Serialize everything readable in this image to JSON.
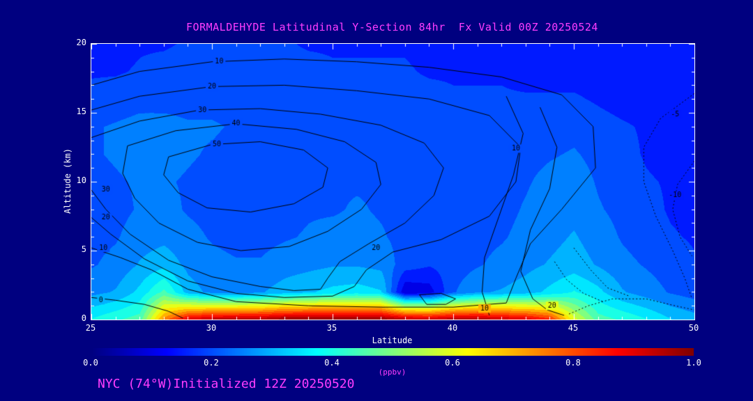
{
  "title": "FORMALDEHYDE Latitudinal Y-Section 84hr  Fx Valid 00Z 20250524",
  "footer": "NYC (74°W)Initialized 12Z 20250520",
  "colors": {
    "background": "#000080",
    "title": "#ff3dff",
    "axis_text": "#ffffff",
    "annotation": "#ff3dff",
    "contour": "#000000"
  },
  "axes": {
    "x": {
      "label": "Latitude",
      "min": 25,
      "max": 50,
      "ticks": [
        25,
        30,
        35,
        40,
        45,
        50
      ]
    },
    "y": {
      "label": "Altitude (km)",
      "min": 0,
      "max": 20,
      "ticks": [
        0,
        5,
        10,
        15,
        20
      ]
    }
  },
  "colorbar": {
    "min": 0.0,
    "max": 1.0,
    "ticks": [
      "0.0",
      "0.2",
      "0.4",
      "0.6",
      "0.8",
      "1.0"
    ],
    "label": "(ppbv)"
  },
  "chart_data": {
    "type": "heatmap",
    "title": "FORMALDEHYDE Latitudinal Y-Section 84hr Fx Valid 00Z 20250524",
    "xlabel": "Latitude",
    "ylabel": "Altitude (km)",
    "xlim": [
      25,
      50
    ],
    "ylim": [
      0,
      20
    ],
    "units": "ppbv",
    "colormap": "jet",
    "colorbar_range": [
      0,
      1
    ],
    "level_step": 0.05,
    "lat_start": 25,
    "lat_step": 1,
    "alt_start": 0,
    "alt_step": 2,
    "grid": [
      [
        0.38,
        0.42,
        0.45,
        0.75,
        0.92,
        0.96,
        0.97,
        0.97,
        1.0,
        1.0,
        1.0,
        1.0,
        1.0,
        0.97,
        0.95,
        0.97,
        0.97,
        0.95,
        0.92,
        0.85,
        0.6,
        0.45,
        0.42,
        0.38,
        0.33,
        0.3
      ],
      [
        0.26,
        0.28,
        0.34,
        0.44,
        0.3,
        0.26,
        0.25,
        0.27,
        0.3,
        0.32,
        0.34,
        0.35,
        0.33,
        0.08,
        0.1,
        0.22,
        0.27,
        0.28,
        0.3,
        0.34,
        0.38,
        0.34,
        0.28,
        0.25,
        0.22,
        0.2
      ],
      [
        0.22,
        0.24,
        0.28,
        0.31,
        0.26,
        0.24,
        0.23,
        0.23,
        0.25,
        0.26,
        0.27,
        0.27,
        0.26,
        0.2,
        0.18,
        0.2,
        0.22,
        0.24,
        0.26,
        0.28,
        0.3,
        0.27,
        0.24,
        0.22,
        0.2,
        0.18
      ],
      [
        0.21,
        0.22,
        0.25,
        0.26,
        0.24,
        0.22,
        0.21,
        0.21,
        0.22,
        0.23,
        0.24,
        0.24,
        0.23,
        0.21,
        0.2,
        0.2,
        0.21,
        0.22,
        0.24,
        0.26,
        0.28,
        0.25,
        0.22,
        0.2,
        0.18,
        0.17
      ],
      [
        0.2,
        0.21,
        0.23,
        0.24,
        0.22,
        0.21,
        0.2,
        0.2,
        0.21,
        0.22,
        0.22,
        0.23,
        0.22,
        0.21,
        0.2,
        0.2,
        0.2,
        0.21,
        0.23,
        0.25,
        0.26,
        0.23,
        0.21,
        0.19,
        0.17,
        0.16
      ],
      [
        0.21,
        0.22,
        0.23,
        0.23,
        0.22,
        0.21,
        0.2,
        0.2,
        0.21,
        0.21,
        0.22,
        0.22,
        0.22,
        0.21,
        0.2,
        0.2,
        0.2,
        0.21,
        0.22,
        0.24,
        0.25,
        0.22,
        0.2,
        0.18,
        0.17,
        0.16
      ],
      [
        0.22,
        0.23,
        0.24,
        0.24,
        0.23,
        0.22,
        0.21,
        0.21,
        0.21,
        0.22,
        0.22,
        0.22,
        0.21,
        0.21,
        0.2,
        0.2,
        0.2,
        0.2,
        0.21,
        0.22,
        0.23,
        0.21,
        0.19,
        0.17,
        0.16,
        0.15
      ],
      [
        0.22,
        0.23,
        0.24,
        0.24,
        0.23,
        0.23,
        0.22,
        0.22,
        0.22,
        0.22,
        0.21,
        0.21,
        0.21,
        0.2,
        0.2,
        0.19,
        0.19,
        0.19,
        0.2,
        0.2,
        0.21,
        0.19,
        0.18,
        0.17,
        0.16,
        0.15
      ],
      [
        0.19,
        0.2,
        0.21,
        0.21,
        0.21,
        0.21,
        0.21,
        0.21,
        0.21,
        0.2,
        0.2,
        0.2,
        0.2,
        0.19,
        0.19,
        0.18,
        0.18,
        0.18,
        0.18,
        0.18,
        0.18,
        0.17,
        0.16,
        0.16,
        0.15,
        0.15
      ],
      [
        0.17,
        0.17,
        0.18,
        0.19,
        0.19,
        0.19,
        0.19,
        0.19,
        0.19,
        0.19,
        0.18,
        0.18,
        0.18,
        0.18,
        0.17,
        0.17,
        0.17,
        0.17,
        0.16,
        0.16,
        0.16,
        0.16,
        0.15,
        0.15,
        0.15,
        0.14
      ],
      [
        0.15,
        0.16,
        0.17,
        0.17,
        0.18,
        0.18,
        0.18,
        0.18,
        0.18,
        0.17,
        0.17,
        0.17,
        0.17,
        0.17,
        0.16,
        0.16,
        0.16,
        0.16,
        0.15,
        0.15,
        0.15,
        0.15,
        0.14,
        0.14,
        0.14,
        0.14
      ]
    ],
    "contour_levels_labeled": [
      -10,
      -5,
      0,
      10,
      20,
      30,
      40,
      50
    ],
    "contours": [
      {
        "label": "0",
        "style": "solid",
        "points": [
          [
            25,
            1.6
          ],
          [
            26,
            1.4
          ],
          [
            27.2,
            1.1
          ],
          [
            28.2,
            0.6
          ],
          [
            28.8,
            0.1
          ]
        ]
      },
      {
        "label": "10",
        "style": "solid",
        "points": [
          [
            25,
            17.0
          ],
          [
            27,
            18.0
          ],
          [
            30,
            18.7
          ],
          [
            33,
            18.9
          ],
          [
            36,
            18.7
          ],
          [
            39,
            18.3
          ],
          [
            42,
            17.6
          ],
          [
            44.5,
            16.3
          ],
          [
            45.8,
            14.0
          ],
          [
            45.9,
            11.0
          ],
          [
            44.5,
            8.0
          ],
          [
            43.2,
            5.5
          ],
          [
            42.6,
            3.0
          ],
          [
            42.2,
            1.2
          ],
          [
            40,
            0.9
          ],
          [
            37,
            0.9
          ],
          [
            34,
            1.0
          ],
          [
            31,
            1.3
          ],
          [
            29,
            2.2
          ],
          [
            27.5,
            3.6
          ],
          [
            26.2,
            4.5
          ],
          [
            25,
            5.2
          ]
        ]
      },
      {
        "label": "20",
        "style": "solid",
        "points": [
          [
            25,
            15.2
          ],
          [
            27,
            16.2
          ],
          [
            30,
            16.9
          ],
          [
            33,
            17.0
          ],
          [
            36,
            16.6
          ],
          [
            39,
            16.0
          ],
          [
            41.5,
            14.8
          ],
          [
            42.8,
            12.5
          ],
          [
            42.6,
            10.0
          ],
          [
            41.5,
            7.5
          ],
          [
            39.5,
            5.8
          ],
          [
            37.5,
            4.9
          ],
          [
            36.4,
            3.6
          ],
          [
            35.9,
            2.4
          ],
          [
            35.0,
            1.7
          ],
          [
            33,
            1.6
          ],
          [
            31,
            1.9
          ],
          [
            29,
            2.8
          ],
          [
            27.2,
            4.4
          ],
          [
            25.8,
            6.2
          ],
          [
            25,
            7.4
          ]
        ]
      },
      {
        "label": "30",
        "style": "solid",
        "points": [
          [
            25,
            13.2
          ],
          [
            27,
            14.4
          ],
          [
            29.5,
            15.2
          ],
          [
            32,
            15.3
          ],
          [
            34.5,
            14.9
          ],
          [
            37,
            14.1
          ],
          [
            38.8,
            12.8
          ],
          [
            39.6,
            11.0
          ],
          [
            39.2,
            9.0
          ],
          [
            38,
            7.0
          ],
          [
            36.5,
            5.5
          ],
          [
            35.3,
            4.2
          ],
          [
            34.8,
            3.0
          ],
          [
            34.5,
            2.2
          ],
          [
            33.4,
            2.1
          ],
          [
            32,
            2.4
          ],
          [
            30,
            3.1
          ],
          [
            28.2,
            4.3
          ],
          [
            26.6,
            6.2
          ],
          [
            25.6,
            8.0
          ],
          [
            25,
            9.4
          ]
        ]
      },
      {
        "label": "40",
        "style": "solid",
        "points": [
          [
            26.5,
            12.6
          ],
          [
            28.5,
            13.7
          ],
          [
            31,
            14.2
          ],
          [
            33.5,
            13.8
          ],
          [
            35.5,
            12.9
          ],
          [
            36.8,
            11.4
          ],
          [
            37,
            9.8
          ],
          [
            36.2,
            8.0
          ],
          [
            34.8,
            6.4
          ],
          [
            33.2,
            5.3
          ],
          [
            31.2,
            5.0
          ],
          [
            29.4,
            5.6
          ],
          [
            27.8,
            7.0
          ],
          [
            26.8,
            8.8
          ],
          [
            26.3,
            10.6
          ],
          [
            26.5,
            12.6
          ]
        ]
      },
      {
        "label": "50",
        "style": "solid",
        "points": [
          [
            28.2,
            11.8
          ],
          [
            30,
            12.7
          ],
          [
            32,
            12.9
          ],
          [
            33.8,
            12.3
          ],
          [
            34.8,
            11.0
          ],
          [
            34.6,
            9.6
          ],
          [
            33.4,
            8.4
          ],
          [
            31.6,
            7.8
          ],
          [
            29.8,
            8.1
          ],
          [
            28.6,
            9.2
          ],
          [
            28.0,
            10.5
          ],
          [
            28.2,
            11.8
          ]
        ]
      },
      {
        "label": "10",
        "style": "solid",
        "points": [
          [
            42.2,
            16.2
          ],
          [
            42.9,
            13.5
          ],
          [
            42.5,
            10.5
          ],
          [
            41.9,
            7.5
          ],
          [
            41.3,
            4.5
          ],
          [
            41.2,
            2.0
          ],
          [
            41.5,
            0.3
          ]
        ]
      },
      {
        "label": "20",
        "style": "solid",
        "points": [
          [
            43.6,
            15.4
          ],
          [
            44.3,
            12.5
          ],
          [
            44.0,
            9.5
          ],
          [
            43.2,
            6.5
          ],
          [
            42.8,
            3.5
          ],
          [
            43.3,
            1.5
          ],
          [
            43.9,
            0.7
          ],
          [
            44.6,
            0.3
          ]
        ]
      },
      {
        "label": "",
        "style": "solid",
        "points": [
          [
            38.6,
            1.8
          ],
          [
            39.5,
            1.9
          ],
          [
            40.1,
            1.5
          ],
          [
            39.7,
            1.1
          ],
          [
            38.9,
            1.1
          ],
          [
            38.6,
            1.8
          ]
        ]
      },
      {
        "label": "-5",
        "style": "dotted",
        "points": [
          [
            50,
            16.4
          ],
          [
            48.6,
            14.6
          ],
          [
            47.9,
            12.5
          ],
          [
            47.9,
            10.0
          ],
          [
            48.4,
            7.5
          ],
          [
            49.1,
            5.0
          ],
          [
            49.6,
            3.0
          ],
          [
            49.9,
            1.5
          ]
        ]
      },
      {
        "label": "-10",
        "style": "dotted",
        "points": [
          [
            50,
            11.5
          ],
          [
            49.3,
            9.8
          ],
          [
            49.1,
            8.0
          ],
          [
            49.4,
            6.0
          ],
          [
            49.9,
            4.6
          ]
        ]
      },
      {
        "label": "",
        "style": "dotted",
        "points": [
          [
            44.8,
            0.4
          ],
          [
            45.6,
            1.0
          ],
          [
            46.6,
            1.5
          ],
          [
            48.0,
            1.5
          ],
          [
            49.2,
            1.0
          ],
          [
            50,
            0.7
          ]
        ]
      },
      {
        "label": "",
        "style": "dotted",
        "points": [
          [
            44.2,
            4.2
          ],
          [
            44.7,
            2.9
          ],
          [
            45.4,
            1.9
          ],
          [
            46.2,
            1.3
          ]
        ]
      },
      {
        "label": "",
        "style": "dotted",
        "points": [
          [
            45.0,
            5.2
          ],
          [
            45.7,
            3.6
          ],
          [
            46.4,
            2.3
          ],
          [
            47.3,
            1.7
          ]
        ]
      }
    ],
    "contour_labels": [
      {
        "text": "10",
        "lat": 30.3,
        "alt": 18.7
      },
      {
        "text": "20",
        "lat": 30.0,
        "alt": 16.9
      },
      {
        "text": "30",
        "lat": 29.6,
        "alt": 15.2
      },
      {
        "text": "40",
        "lat": 31.0,
        "alt": 14.2
      },
      {
        "text": "50",
        "lat": 30.2,
        "alt": 12.7
      },
      {
        "text": "30",
        "lat": 25.6,
        "alt": 9.4
      },
      {
        "text": "20",
        "lat": 25.6,
        "alt": 7.4
      },
      {
        "text": "10",
        "lat": 25.5,
        "alt": 5.2
      },
      {
        "text": "0",
        "lat": 25.4,
        "alt": 1.4
      },
      {
        "text": "20",
        "lat": 36.8,
        "alt": 5.2
      },
      {
        "text": "10",
        "lat": 42.6,
        "alt": 12.4
      },
      {
        "text": "-5",
        "lat": 49.2,
        "alt": 14.9
      },
      {
        "text": "-10",
        "lat": 49.2,
        "alt": 9.0
      },
      {
        "text": "10",
        "lat": 41.3,
        "alt": 0.8
      },
      {
        "text": "20",
        "lat": 44.1,
        "alt": 1.0
      }
    ]
  }
}
